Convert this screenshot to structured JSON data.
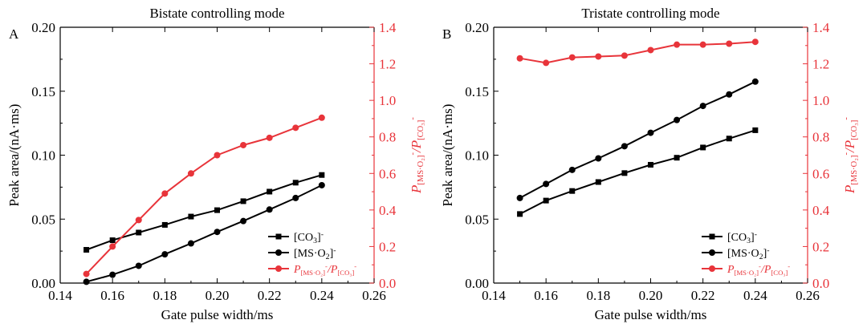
{
  "figure": {
    "right_axis_color": "#e8343a",
    "left_axis_color": "#000000"
  },
  "chart_data": [
    {
      "type": "line",
      "panel_label": "A",
      "title": "Bistate controlling mode",
      "xlabel": "Gate pulse width/ms",
      "ylabel": "Peak area/(nA·ms)",
      "y2label": "P[MS·O2]-/P[CO3]-",
      "xlim": [
        0.14,
        0.26
      ],
      "ylim": [
        0.0,
        0.2
      ],
      "y2lim": [
        0.0,
        1.4
      ],
      "xticks": [
        "0.14",
        "0.16",
        "0.18",
        "0.20",
        "0.22",
        "0.24",
        "0.26"
      ],
      "yticks": [
        "0.00",
        "0.05",
        "0.10",
        "0.15",
        "0.20"
      ],
      "y2ticks": [
        "0.0",
        "0.2",
        "0.4",
        "0.6",
        "0.8",
        "1.0",
        "1.2",
        "1.4"
      ],
      "x": [
        0.15,
        0.16,
        0.17,
        0.18,
        0.19,
        0.2,
        0.21,
        0.22,
        0.23,
        0.24
      ],
      "legend_position": "bottom-right",
      "series": [
        {
          "name": "[CO3]-",
          "axis": "left",
          "marker": "square",
          "color": "#000000",
          "values": [
            0.026,
            0.0335,
            0.0395,
            0.0455,
            0.052,
            0.057,
            0.064,
            0.0715,
            0.0785,
            0.0845
          ]
        },
        {
          "name": "[MS·O2]-",
          "axis": "left",
          "marker": "circle",
          "color": "#000000",
          "values": [
            0.001,
            0.0065,
            0.0135,
            0.0225,
            0.031,
            0.04,
            0.0485,
            0.0575,
            0.0665,
            0.0765
          ]
        },
        {
          "name": "P[MS·O2]-/P[CO3]-",
          "axis": "right",
          "marker": "circle",
          "color": "#e8343a",
          "values": [
            0.05,
            0.2,
            0.345,
            0.49,
            0.6,
            0.7,
            0.755,
            0.795,
            0.85,
            0.905
          ]
        }
      ]
    },
    {
      "type": "line",
      "panel_label": "B",
      "title": "Tristate controlling mode",
      "xlabel": "Gate pulse width/ms",
      "ylabel": "Peak area/(nA·ms)",
      "y2label": "P[MS·O2]-/P[CO3]-",
      "xlim": [
        0.14,
        0.26
      ],
      "ylim": [
        0.0,
        0.2
      ],
      "y2lim": [
        0.0,
        1.4
      ],
      "xticks": [
        "0.14",
        "0.16",
        "0.18",
        "0.20",
        "0.22",
        "0.24",
        "0.26"
      ],
      "yticks": [
        "0.00",
        "0.05",
        "0.10",
        "0.15",
        "0.20"
      ],
      "y2ticks": [
        "0.0",
        "0.2",
        "0.4",
        "0.6",
        "0.8",
        "1.0",
        "1.2",
        "1.4"
      ],
      "x": [
        0.15,
        0.16,
        0.17,
        0.18,
        0.19,
        0.2,
        0.21,
        0.22,
        0.23,
        0.24
      ],
      "legend_position": "bottom-right",
      "series": [
        {
          "name": "[CO3]-",
          "axis": "left",
          "marker": "square",
          "color": "#000000",
          "values": [
            0.054,
            0.0645,
            0.072,
            0.079,
            0.086,
            0.0925,
            0.098,
            0.106,
            0.113,
            0.1195
          ]
        },
        {
          "name": "[MS·O2]-",
          "axis": "left",
          "marker": "circle",
          "color": "#000000",
          "values": [
            0.0665,
            0.0775,
            0.0885,
            0.0975,
            0.107,
            0.1175,
            0.1275,
            0.1385,
            0.1475,
            0.1575
          ]
        },
        {
          "name": "P[MS·O2]-/P[CO3]-",
          "axis": "right",
          "marker": "circle",
          "color": "#e8343a",
          "values": [
            1.23,
            1.205,
            1.235,
            1.24,
            1.245,
            1.275,
            1.305,
            1.305,
            1.31,
            1.32
          ]
        }
      ]
    }
  ]
}
